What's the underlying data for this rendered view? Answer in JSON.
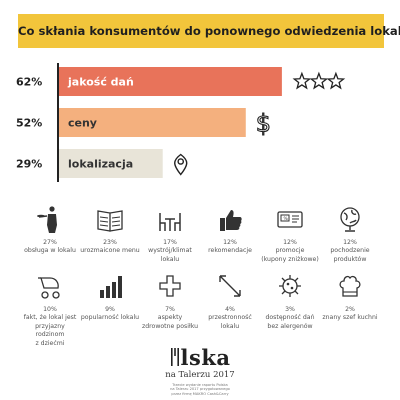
{
  "title": "Co skłania konsumentów do ponownego odwiedzenia lokalu?",
  "colors": {
    "title_band": "#f2c53b",
    "bar_1": "#e8735a",
    "bar_2": "#f4b07e",
    "bar_3": "#e8e4d8",
    "axis": "#222222",
    "icons": "#333333"
  },
  "chart_data": {
    "type": "bar",
    "orientation": "horizontal",
    "categories": [
      "jakość dań",
      "ceny",
      "lokalizacja"
    ],
    "values": [
      62,
      52,
      29
    ],
    "value_labels": [
      "62%",
      "52%",
      "29%"
    ],
    "end_icons": [
      "three-stars-icon",
      "dollar-icon",
      "location-pin-icon"
    ],
    "xlim": [
      0,
      72
    ],
    "grid": false
  },
  "factors": [
    {
      "pct": "27%",
      "label": "obsługa w lokalu",
      "icon": "waiter-icon"
    },
    {
      "pct": "23%",
      "label": "urozmaicone menu",
      "icon": "menu-book-icon"
    },
    {
      "pct": "17%",
      "label": "wystrój/klimat lokalu",
      "icon": "table-chairs-icon"
    },
    {
      "pct": "12%",
      "label": "rekomendacje",
      "icon": "thumbs-up-icon"
    },
    {
      "pct": "12%",
      "label": "promocje\n(kupony zniżkowe)",
      "icon": "coupon-icon"
    },
    {
      "pct": "12%",
      "label": "pochodzenie\nproduktów",
      "icon": "globe-icon"
    },
    {
      "pct": "10%",
      "label": "fakt, że lokal jest\nprzyjazny rodzinom\nz dziećmi",
      "icon": "stroller-icon"
    },
    {
      "pct": "9%",
      "label": "popularność lokalu",
      "icon": "bar-growth-icon"
    },
    {
      "pct": "7%",
      "label": "aspekty\nzdrowotne posiłku",
      "icon": "health-cross-icon"
    },
    {
      "pct": "4%",
      "label": "przestronność lokalu",
      "icon": "expand-arrows-icon"
    },
    {
      "pct": "3%",
      "label": "dostępność dań\nbez alergenów",
      "icon": "virus-icon"
    },
    {
      "pct": "2%",
      "label": "znany szef kuchni",
      "icon": "chef-hat-icon"
    }
  ],
  "footer": {
    "logo": "lska",
    "subtitle": "na Talerzu 2017",
    "note": "Trzecie wydanie raportu Polska\nna Talerzu 2017 przygotowanego\nprzez firmę MAKRO Cash&Carry"
  }
}
